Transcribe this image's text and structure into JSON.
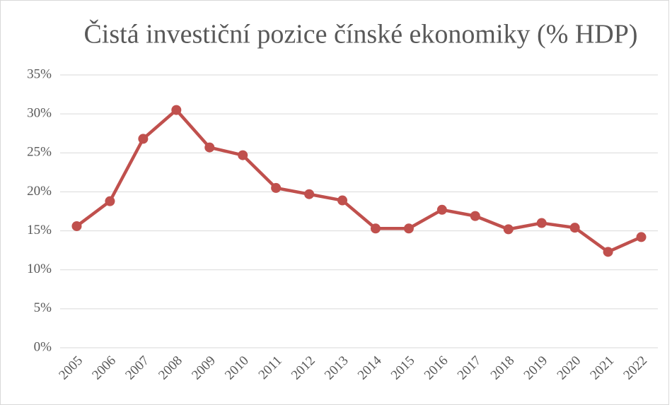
{
  "chart_data": {
    "type": "line",
    "title": "Čistá investiční pozice čínské ekonomiky (% HDP)",
    "categories": [
      "2005",
      "2006",
      "2007",
      "2008",
      "2009",
      "2010",
      "2011",
      "2012",
      "2013",
      "2014",
      "2015",
      "2016",
      "2017",
      "2018",
      "2019",
      "2020",
      "2021",
      "2022"
    ],
    "series": [
      {
        "name": "Čistá investiční pozice",
        "color": "#c0504d",
        "values": [
          15.6,
          18.8,
          26.8,
          30.5,
          25.7,
          24.7,
          20.5,
          19.7,
          18.9,
          15.3,
          15.3,
          17.7,
          16.9,
          15.2,
          16.0,
          15.4,
          12.3,
          14.2
        ]
      }
    ],
    "ylim": [
      0,
      35
    ],
    "yticks": [
      {
        "value": 0,
        "label": "0%"
      },
      {
        "value": 5,
        "label": "5%"
      },
      {
        "value": 10,
        "label": "10%"
      },
      {
        "value": 15,
        "label": "15%"
      },
      {
        "value": 20,
        "label": "20%"
      },
      {
        "value": 25,
        "label": "25%"
      },
      {
        "value": 30,
        "label": "30%"
      },
      {
        "value": 35,
        "label": "35%"
      }
    ],
    "grid": true
  }
}
